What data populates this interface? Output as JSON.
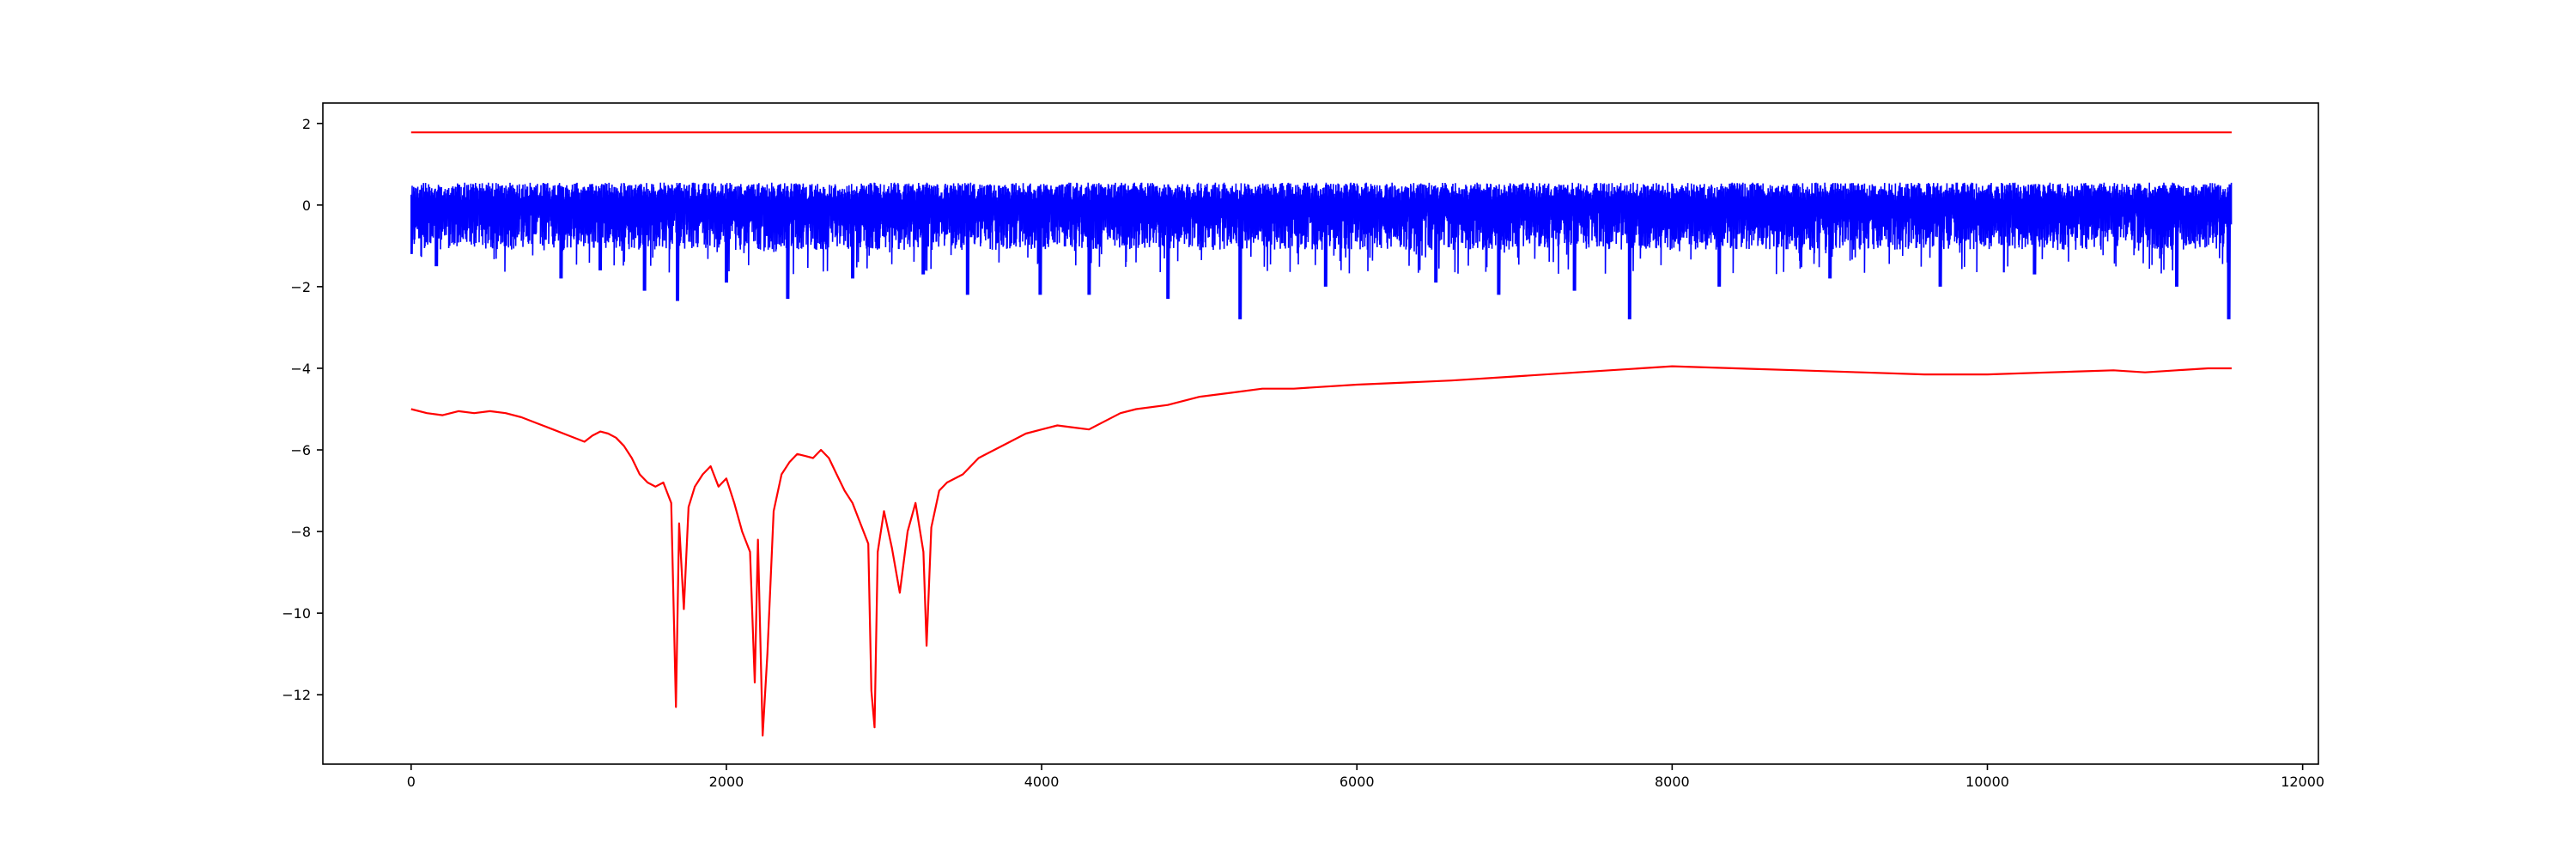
{
  "chart_data": {
    "type": "line",
    "title": "",
    "xlabel": "",
    "ylabel": "",
    "xlim": [
      -560,
      12100
    ],
    "ylim": [
      -13.7,
      2.5
    ],
    "grid": false,
    "legend": "none",
    "xticks": [
      0,
      2000,
      4000,
      6000,
      8000,
      10000,
      12000
    ],
    "xtick_labels": [
      "0",
      "2000",
      "4000",
      "6000",
      "8000",
      "10000",
      "12000"
    ],
    "yticks": [
      2,
      0,
      -2,
      -4,
      -6,
      -8,
      -10,
      -12
    ],
    "ytick_labels": [
      "2",
      "0",
      "−2",
      "−4",
      "−6",
      "−8",
      "−10",
      "−12"
    ],
    "series": [
      {
        "style": "constant",
        "color": "#ff0000",
        "x": [
          0,
          11550
        ],
        "y": [
          1.78,
          1.78
        ]
      },
      {
        "style": "noisy-band",
        "color": "#0000ff",
        "x_range": [
          0,
          11550
        ],
        "typical_max": 0.55,
        "typical_min": -1.1,
        "deep_spikes": [
          {
            "x": 0,
            "y": -1.2
          },
          {
            "x": 160,
            "y": -1.5
          },
          {
            "x": 950,
            "y": -1.8
          },
          {
            "x": 1200,
            "y": -1.6
          },
          {
            "x": 1480,
            "y": -2.1
          },
          {
            "x": 1690,
            "y": -2.35
          },
          {
            "x": 2000,
            "y": -1.9
          },
          {
            "x": 2390,
            "y": -2.3
          },
          {
            "x": 2800,
            "y": -1.8
          },
          {
            "x": 3250,
            "y": -1.7
          },
          {
            "x": 3530,
            "y": -2.2
          },
          {
            "x": 3990,
            "y": -2.2
          },
          {
            "x": 4300,
            "y": -2.2
          },
          {
            "x": 4800,
            "y": -2.3
          },
          {
            "x": 5260,
            "y": -2.8
          },
          {
            "x": 5800,
            "y": -2.0
          },
          {
            "x": 6500,
            "y": -1.9
          },
          {
            "x": 6900,
            "y": -2.2
          },
          {
            "x": 7380,
            "y": -2.1
          },
          {
            "x": 7730,
            "y": -2.8
          },
          {
            "x": 8300,
            "y": -2.0
          },
          {
            "x": 9000,
            "y": -1.8
          },
          {
            "x": 9700,
            "y": -2.0
          },
          {
            "x": 10300,
            "y": -1.7
          },
          {
            "x": 11200,
            "y": -2.0
          },
          {
            "x": 11530,
            "y": -2.8
          }
        ]
      },
      {
        "style": "line",
        "color": "#ff0000",
        "x": [
          0,
          100,
          200,
          300,
          400,
          500,
          600,
          700,
          800,
          900,
          1000,
          1100,
          1150,
          1200,
          1250,
          1300,
          1350,
          1400,
          1450,
          1500,
          1550,
          1600,
          1650,
          1680,
          1700,
          1730,
          1760,
          1800,
          1850,
          1900,
          1950,
          2000,
          2050,
          2100,
          2150,
          2180,
          2200,
          2230,
          2260,
          2300,
          2350,
          2400,
          2450,
          2500,
          2550,
          2600,
          2650,
          2700,
          2750,
          2800,
          2850,
          2900,
          2920,
          2940,
          2960,
          3000,
          3050,
          3100,
          3150,
          3200,
          3250,
          3270,
          3300,
          3350,
          3400,
          3500,
          3600,
          3700,
          3800,
          3900,
          4000,
          4100,
          4200,
          4300,
          4400,
          4500,
          4600,
          4800,
          5000,
          5200,
          5400,
          5600,
          5800,
          6000,
          6300,
          6600,
          7000,
          7400,
          7800,
          8000,
          8400,
          8800,
          9200,
          9600,
          10000,
          10400,
          10800,
          11000,
          11200,
          11400,
          11550
        ],
        "y": [
          -5.0,
          -5.1,
          -5.15,
          -5.05,
          -5.1,
          -5.05,
          -5.1,
          -5.2,
          -5.35,
          -5.5,
          -5.65,
          -5.8,
          -5.65,
          -5.55,
          -5.6,
          -5.7,
          -5.9,
          -6.2,
          -6.6,
          -6.8,
          -6.9,
          -6.8,
          -7.3,
          -12.3,
          -7.8,
          -9.9,
          -7.4,
          -6.9,
          -6.6,
          -6.4,
          -6.9,
          -6.7,
          -7.3,
          -8.0,
          -8.5,
          -11.7,
          -8.2,
          -13.0,
          -11.0,
          -7.5,
          -6.6,
          -6.3,
          -6.1,
          -6.15,
          -6.2,
          -6.0,
          -6.2,
          -6.6,
          -7.0,
          -7.3,
          -7.8,
          -8.3,
          -11.9,
          -12.8,
          -8.5,
          -7.5,
          -8.4,
          -9.5,
          -8.0,
          -7.3,
          -8.5,
          -10.8,
          -7.9,
          -7.0,
          -6.8,
          -6.6,
          -6.2,
          -6.0,
          -5.8,
          -5.6,
          -5.5,
          -5.4,
          -5.45,
          -5.5,
          -5.3,
          -5.1,
          -5.0,
          -4.9,
          -4.7,
          -4.6,
          -4.5,
          -4.5,
          -4.45,
          -4.4,
          -4.35,
          -4.3,
          -4.2,
          -4.1,
          -4.0,
          -3.95,
          -4.0,
          -4.05,
          -4.1,
          -4.15,
          -4.15,
          -4.1,
          -4.05,
          -4.1,
          -4.05,
          -4.0,
          -4.0
        ]
      }
    ]
  }
}
